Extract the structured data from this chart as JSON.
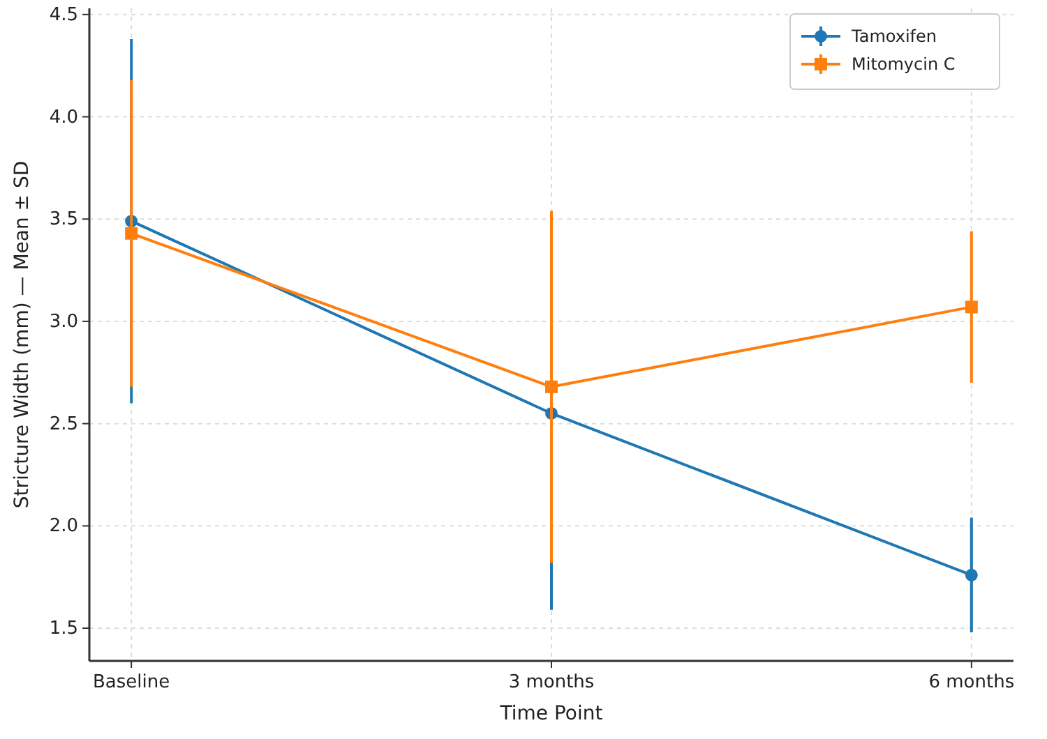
{
  "chart_data": {
    "type": "line",
    "xlabel": "Time Point",
    "ylabel": "Stricture Width (mm) — Mean ± SD",
    "categories": [
      "Baseline",
      "3 months",
      "6 months"
    ],
    "series": [
      {
        "name": "Tamoxifen",
        "color": "#1f77b4",
        "marker": "circle",
        "values": [
          3.49,
          2.55,
          1.76
        ],
        "errors": [
          0.89,
          0.96,
          0.28
        ]
      },
      {
        "name": "Mitomycin C",
        "color": "#ff7f0e",
        "marker": "square",
        "values": [
          3.43,
          2.68,
          3.07
        ],
        "errors": [
          0.75,
          0.86,
          0.37
        ]
      }
    ],
    "ylim": [
      1.34,
      4.53
    ],
    "yticks": [
      {
        "value": 1.5,
        "label": "1.5"
      },
      {
        "value": 2.0,
        "label": "2.0"
      },
      {
        "value": 2.5,
        "label": "2.5"
      },
      {
        "value": 3.0,
        "label": "3.0"
      },
      {
        "value": 3.5,
        "label": "3.5"
      },
      {
        "value": 4.0,
        "label": "4.0"
      },
      {
        "value": 4.5,
        "label": "4.5"
      }
    ],
    "grid": true,
    "legend": "top right",
    "line_style": "solid"
  }
}
